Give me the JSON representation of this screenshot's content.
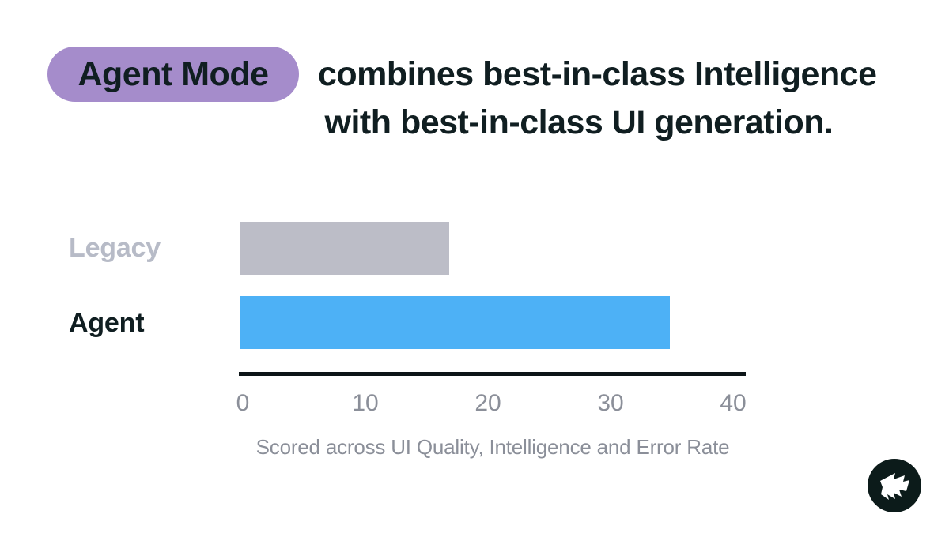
{
  "heading": {
    "badge_label": "Agent Mode",
    "line1_text": "combines best-in-class Intelligence",
    "line2_text": "with best-in-class UI generation."
  },
  "chart_data": {
    "type": "bar",
    "orientation": "horizontal",
    "title": "Agent Mode combines best-in-class Intelligence with best-in-class UI generation.",
    "categories": [
      "Legacy",
      "Agent"
    ],
    "values": [
      17,
      35
    ],
    "series": [
      {
        "name": "Legacy",
        "value": 17,
        "bar_color": "#bcbdc7",
        "label_color": "#b7bbc7"
      },
      {
        "name": "Agent",
        "value": 35,
        "bar_color": "#4db1f6",
        "label_color": "#101e21"
      }
    ],
    "xlim": [
      0,
      40
    ],
    "xticks": [
      "0",
      "10",
      "20",
      "30",
      "40"
    ],
    "xlabel": "Scored across UI Quality, Intelligence and Error Rate",
    "ylabel": "",
    "grid": false,
    "legend": "none"
  },
  "logo": {
    "name": "brand-flag-logo"
  },
  "colors": {
    "background": "#ffffff",
    "badge_bg": "#a58ccb",
    "title_text": "#101e21",
    "axis_line": "#0d1518",
    "tick_text": "#8b8f99",
    "caption_text": "#8b8f99",
    "logo_bg": "#0c1b1a",
    "logo_glyph": "#ffffff"
  }
}
